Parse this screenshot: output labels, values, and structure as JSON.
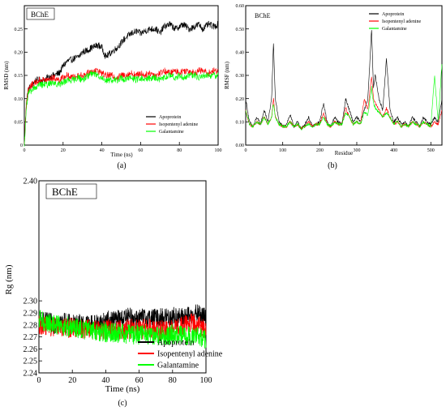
{
  "figure": {
    "panels": [
      "a",
      "b",
      "c"
    ],
    "captions": [
      "(a)",
      "(b)",
      "(c)"
    ],
    "legend": {
      "entries": [
        {
          "label": "Apoprotein",
          "color": "#000000"
        },
        {
          "label": "Isopentenyl adenine",
          "color": "#ff0000"
        },
        {
          "label": "Galantamine",
          "color": "#00ff00"
        }
      ]
    },
    "colors": {
      "apoprotein": "#000000",
      "isopentenyl": "#ff0000",
      "galantamine": "#00ff00"
    }
  },
  "chart_data": [
    {
      "panel": "a",
      "type": "line",
      "tag": "BChE",
      "xlabel": "Time (ns)",
      "ylabel": "RMSD (nm)",
      "xlim": [
        0,
        100
      ],
      "ylim": [
        0,
        0.3
      ],
      "xticks": [
        0,
        20,
        40,
        60,
        80,
        100
      ],
      "yticks": [
        0,
        0.05,
        0.1,
        0.15,
        0.2,
        0.25
      ],
      "legend_position": "bottom-right",
      "x": [
        0,
        1,
        2,
        4,
        6,
        8,
        10,
        12,
        15,
        18,
        20,
        22,
        25,
        28,
        30,
        33,
        35,
        38,
        40,
        42,
        45,
        48,
        50,
        52,
        55,
        58,
        60,
        62,
        65,
        68,
        70,
        72,
        75,
        78,
        80,
        82,
        85,
        88,
        90,
        92,
        95,
        98,
        100
      ],
      "series": [
        {
          "name": "Apoprotein",
          "color": "#000000",
          "values": [
            0.0,
            0.09,
            0.12,
            0.13,
            0.14,
            0.14,
            0.14,
            0.145,
            0.15,
            0.155,
            0.17,
            0.18,
            0.185,
            0.19,
            0.2,
            0.205,
            0.21,
            0.215,
            0.21,
            0.19,
            0.2,
            0.21,
            0.22,
            0.23,
            0.24,
            0.245,
            0.24,
            0.245,
            0.25,
            0.25,
            0.24,
            0.255,
            0.26,
            0.25,
            0.255,
            0.26,
            0.25,
            0.255,
            0.26,
            0.25,
            0.26,
            0.255,
            0.26
          ]
        },
        {
          "name": "Isopentenyl adenine",
          "color": "#ff0000",
          "values": [
            0.0,
            0.09,
            0.12,
            0.13,
            0.135,
            0.14,
            0.14,
            0.14,
            0.145,
            0.14,
            0.145,
            0.15,
            0.145,
            0.15,
            0.15,
            0.155,
            0.16,
            0.16,
            0.155,
            0.15,
            0.15,
            0.145,
            0.15,
            0.15,
            0.155,
            0.15,
            0.155,
            0.15,
            0.155,
            0.15,
            0.155,
            0.16,
            0.155,
            0.16,
            0.155,
            0.16,
            0.16,
            0.155,
            0.16,
            0.16,
            0.155,
            0.16,
            0.16
          ]
        },
        {
          "name": "Galantamine",
          "color": "#00ff00",
          "values": [
            0.0,
            0.08,
            0.11,
            0.12,
            0.125,
            0.13,
            0.13,
            0.13,
            0.135,
            0.13,
            0.135,
            0.14,
            0.14,
            0.145,
            0.14,
            0.15,
            0.155,
            0.15,
            0.145,
            0.14,
            0.14,
            0.14,
            0.145,
            0.14,
            0.145,
            0.14,
            0.145,
            0.14,
            0.145,
            0.145,
            0.14,
            0.145,
            0.15,
            0.145,
            0.15,
            0.145,
            0.15,
            0.15,
            0.145,
            0.15,
            0.15,
            0.15,
            0.15
          ]
        }
      ]
    },
    {
      "panel": "b",
      "type": "line",
      "tag": "BChE",
      "xlabel": "Residue",
      "ylabel": "RMSF (nm)",
      "xlim": [
        0,
        530
      ],
      "ylim": [
        0,
        0.6
      ],
      "xticks": [
        0,
        100,
        200,
        300,
        400,
        500
      ],
      "yticks": [
        0,
        0.1,
        0.2,
        0.3,
        0.4,
        0.5,
        0.6
      ],
      "legend_position": "top-center",
      "x": [
        0,
        10,
        20,
        30,
        40,
        50,
        60,
        70,
        75,
        80,
        90,
        100,
        110,
        120,
        130,
        140,
        150,
        160,
        170,
        180,
        190,
        200,
        210,
        220,
        230,
        240,
        250,
        260,
        270,
        280,
        290,
        300,
        310,
        320,
        330,
        340,
        345,
        350,
        360,
        370,
        380,
        390,
        400,
        410,
        420,
        430,
        440,
        450,
        460,
        470,
        480,
        490,
        500,
        510,
        520,
        530
      ],
      "series": [
        {
          "name": "Apoprotein",
          "color": "#000000",
          "values": [
            0.2,
            0.1,
            0.08,
            0.12,
            0.09,
            0.15,
            0.1,
            0.2,
            0.44,
            0.2,
            0.1,
            0.08,
            0.09,
            0.13,
            0.08,
            0.1,
            0.07,
            0.09,
            0.12,
            0.08,
            0.09,
            0.1,
            0.18,
            0.1,
            0.08,
            0.12,
            0.1,
            0.09,
            0.2,
            0.15,
            0.1,
            0.12,
            0.1,
            0.15,
            0.2,
            0.5,
            0.25,
            0.3,
            0.2,
            0.15,
            0.37,
            0.15,
            0.1,
            0.12,
            0.09,
            0.1,
            0.08,
            0.12,
            0.1,
            0.08,
            0.12,
            0.1,
            0.09,
            0.12,
            0.1,
            0.2
          ]
        },
        {
          "name": "Isopentenyl adenine",
          "color": "#ff0000",
          "values": [
            0.15,
            0.09,
            0.08,
            0.1,
            0.09,
            0.12,
            0.09,
            0.12,
            0.2,
            0.12,
            0.09,
            0.08,
            0.08,
            0.1,
            0.08,
            0.09,
            0.07,
            0.08,
            0.1,
            0.08,
            0.09,
            0.09,
            0.14,
            0.09,
            0.08,
            0.1,
            0.09,
            0.09,
            0.16,
            0.12,
            0.09,
            0.1,
            0.09,
            0.2,
            0.15,
            0.3,
            0.2,
            0.18,
            0.15,
            0.12,
            0.16,
            0.12,
            0.09,
            0.1,
            0.08,
            0.09,
            0.08,
            0.1,
            0.09,
            0.08,
            0.1,
            0.09,
            0.08,
            0.1,
            0.09,
            0.15
          ]
        },
        {
          "name": "Galantamine",
          "color": "#00ff00",
          "values": [
            0.15,
            0.09,
            0.08,
            0.1,
            0.09,
            0.12,
            0.09,
            0.12,
            0.18,
            0.12,
            0.09,
            0.08,
            0.08,
            0.1,
            0.08,
            0.09,
            0.07,
            0.08,
            0.09,
            0.08,
            0.09,
            0.09,
            0.12,
            0.09,
            0.08,
            0.1,
            0.09,
            0.09,
            0.14,
            0.12,
            0.09,
            0.1,
            0.09,
            0.14,
            0.13,
            0.25,
            0.18,
            0.16,
            0.14,
            0.12,
            0.14,
            0.12,
            0.09,
            0.1,
            0.08,
            0.09,
            0.08,
            0.1,
            0.09,
            0.08,
            0.1,
            0.09,
            0.08,
            0.3,
            0.1,
            0.35
          ]
        }
      ]
    },
    {
      "panel": "c",
      "type": "line",
      "tag": "BChE",
      "xlabel": "Time (ns)",
      "ylabel": "Rg (nm)",
      "xlim": [
        0,
        100
      ],
      "ylim": [
        2.24,
        2.4
      ],
      "xticks": [
        0,
        20,
        40,
        60,
        80,
        100
      ],
      "yticks": [
        2.24,
        2.25,
        2.26,
        2.27,
        2.28,
        2.29,
        2.3,
        2.4
      ],
      "legend_position": "bottom-center",
      "x": [
        0,
        5,
        10,
        15,
        20,
        25,
        30,
        35,
        40,
        45,
        50,
        55,
        60,
        65,
        70,
        75,
        80,
        85,
        90,
        95,
        100
      ],
      "series": [
        {
          "name": "Apoprotein",
          "color": "#000000",
          "values": [
            2.283,
            2.282,
            2.281,
            2.282,
            2.28,
            2.281,
            2.28,
            2.281,
            2.283,
            2.284,
            2.285,
            2.286,
            2.285,
            2.286,
            2.285,
            2.286,
            2.287,
            2.286,
            2.287,
            2.289,
            2.286
          ]
        },
        {
          "name": "Isopentenyl adenine",
          "color": "#ff0000",
          "values": [
            2.28,
            2.279,
            2.278,
            2.277,
            2.278,
            2.276,
            2.277,
            2.275,
            2.276,
            2.277,
            2.276,
            2.277,
            2.276,
            2.277,
            2.276,
            2.275,
            2.276,
            2.278,
            2.282,
            2.28,
            2.277
          ]
        },
        {
          "name": "Galantamine",
          "color": "#00ff00",
          "values": [
            2.285,
            2.282,
            2.28,
            2.279,
            2.278,
            2.276,
            2.276,
            2.275,
            2.274,
            2.273,
            2.273,
            2.272,
            2.272,
            2.272,
            2.271,
            2.271,
            2.272,
            2.272,
            2.271,
            2.27,
            2.268
          ]
        }
      ]
    }
  ]
}
